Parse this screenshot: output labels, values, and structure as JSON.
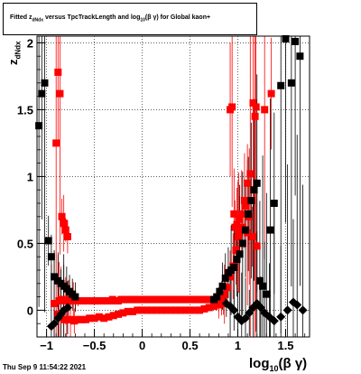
{
  "header": {
    "title_prefix": "Fitted  z",
    "title_sub": "dNdx",
    "title_middle": "  versus TpcTrackLength and log",
    "title_sub2": "10",
    "title_suffix": "(β γ) for Global kaon+"
  },
  "footer": {
    "date": "Thu Sep  9 11:54:22 2021"
  },
  "axes": {
    "x_title_main": "log",
    "x_title_sub": "10",
    "x_title_tail": "(β γ)",
    "y_title_main": "z",
    "y_title_sub": "dNdx"
  },
  "colors": {
    "series_red": "#ff0000",
    "series_black": "#000000"
  },
  "chart_data": {
    "type": "scatter",
    "title": "Fitted  z dNdx versus TpcTrackLength and log10(β γ) for Global kaon+",
    "xlabel": "log10(β γ)",
    "ylabel": "z dNdx",
    "xlim": [
      -1.1,
      1.75
    ],
    "ylim": [
      -0.2,
      2.05
    ],
    "x_ticks": [
      -1,
      -0.5,
      0,
      0.5,
      1,
      1.5
    ],
    "x_tick_labels": [
      "−1",
      "−0.5",
      "0",
      "0.5",
      "1",
      "1.5"
    ],
    "y_ticks": [
      0,
      0.5,
      1,
      1.5,
      2
    ],
    "y_tick_labels": [
      "0",
      "0.5",
      "1",
      "1.5",
      "2"
    ],
    "grid": true,
    "series": [
      {
        "color": "red",
        "marker": "square",
        "x": [
          -0.92,
          -0.87,
          -0.85,
          -0.82,
          -0.8,
          -0.77,
          -0.75,
          -0.72,
          -0.7,
          -0.67,
          -0.64,
          -0.61,
          -0.58,
          -0.55,
          -0.52,
          -0.49,
          -0.46,
          -0.43,
          -0.4,
          -0.37,
          -0.34,
          -0.31,
          -0.28,
          -0.25,
          -0.22,
          -0.19,
          -0.16,
          -0.13,
          -0.1,
          -0.07,
          -0.04,
          -0.01,
          0.02,
          0.05,
          0.08,
          0.11,
          0.14,
          0.17,
          0.2,
          0.23,
          0.26,
          0.29,
          0.32,
          0.35,
          0.38,
          0.41,
          0.44,
          0.47,
          0.5,
          0.53,
          0.56,
          0.59,
          0.62,
          0.65,
          0.68,
          0.71,
          0.74,
          0.77,
          0.8,
          0.83,
          0.86,
          0.89,
          0.92,
          0.95,
          0.98,
          1.01,
          1.04,
          1.07,
          1.1,
          1.13,
          1.16,
          1.19
        ],
        "y": [
          0.05,
          0.07,
          0.08,
          0.08,
          0.07,
          0.07,
          0.08,
          0.07,
          0.07,
          0.07,
          0.07,
          0.07,
          0.07,
          0.07,
          0.07,
          0.07,
          0.07,
          0.07,
          0.07,
          0.07,
          0.07,
          0.08,
          0.07,
          0.07,
          0.08,
          0.08,
          0.08,
          0.08,
          0.08,
          0.08,
          0.08,
          0.08,
          0.08,
          0.08,
          0.08,
          0.08,
          0.08,
          0.08,
          0.08,
          0.08,
          0.08,
          0.08,
          0.08,
          0.08,
          0.08,
          0.08,
          0.08,
          0.08,
          0.08,
          0.08,
          0.08,
          0.08,
          0.08,
          0.08,
          0.08,
          0.08,
          0.08,
          0.08,
          0.08,
          0.09,
          0.12,
          0.17,
          0.25,
          0.33,
          0.45,
          0.58,
          0.72,
          0.82,
          0.95,
          1.02,
          1.55,
          1.52
        ]
      },
      {
        "color": "red",
        "marker": "square",
        "x": [
          -0.88,
          -0.85,
          -0.82,
          -0.79,
          -0.75,
          -0.71,
          -0.67,
          -0.63,
          -0.59,
          -0.55,
          -0.5,
          -0.45,
          -0.4,
          -0.35,
          -0.3,
          -0.25,
          -0.2,
          -0.15,
          -0.1,
          -0.05,
          0.0,
          0.05,
          0.1,
          0.15,
          0.2,
          0.25,
          0.3,
          0.35,
          0.4,
          0.45,
          0.5,
          0.55,
          0.6,
          0.65,
          0.7,
          0.75,
          0.8,
          0.85
        ],
        "y": [
          -0.03,
          -0.05,
          -0.07,
          -0.07,
          -0.07,
          -0.08,
          -0.07,
          -0.07,
          -0.07,
          -0.06,
          -0.06,
          -0.05,
          -0.06,
          -0.05,
          -0.04,
          -0.03,
          -0.02,
          -0.01,
          -0.01,
          0.0,
          0.0,
          0.0,
          0.0,
          0.0,
          0.0,
          0.0,
          0.0,
          0.0,
          0.0,
          0.0,
          0.0,
          0.0,
          0.0,
          0.01,
          0.02,
          0.03,
          0.04,
          0.05
        ]
      },
      {
        "color": "red",
        "marker": "square",
        "x": [
          -0.88,
          -0.86,
          -0.9,
          -0.84,
          -0.82,
          -0.8,
          -0.78,
          0.92,
          0.94,
          0.97,
          1.0,
          1.02,
          1.05,
          1.08,
          1.12,
          1.15,
          1.2,
          1.28,
          1.35,
          0.96,
          0.99,
          1.1,
          1.18
        ],
        "y": [
          1.78,
          1.62,
          1.25,
          0.7,
          0.65,
          0.6,
          0.55,
          1.5,
          1.52,
          0.62,
          0.55,
          0.68,
          0.62,
          0.78,
          0.7,
          0.55,
          0.48,
          1.5,
          1.62,
          0.72,
          0.64,
          0.58,
          1.45
        ]
      },
      {
        "color": "black",
        "marker": "square",
        "x": [
          -1.08,
          -1.05,
          -1.02,
          -0.98,
          -0.95,
          -0.92,
          -0.88,
          -0.85,
          -0.82,
          -0.79,
          -0.76,
          -0.73,
          -0.7,
          0.75,
          0.78,
          0.81,
          0.84,
          0.87,
          0.9,
          0.93,
          0.96,
          0.99,
          1.02,
          1.05,
          1.08,
          1.11,
          1.14,
          1.17,
          1.2,
          1.23,
          1.26,
          1.3,
          1.34,
          1.38,
          1.45,
          1.5,
          1.56,
          1.6,
          1.65
        ],
        "y": [
          1.38,
          1.62,
          1.7,
          0.52,
          0.4,
          0.25,
          0.22,
          0.2,
          0.18,
          0.16,
          0.14,
          0.12,
          0.1,
          0.08,
          0.1,
          0.14,
          0.18,
          0.24,
          0.28,
          0.3,
          0.32,
          0.38,
          0.42,
          0.5,
          0.6,
          0.72,
          0.82,
          0.9,
          0.95,
          0.22,
          0.18,
          0.12,
          0.6,
          0.8,
          1.68,
          2.03,
          1.7,
          2.01,
          1.9
        ]
      },
      {
        "color": "black",
        "marker": "diamond",
        "x": [
          -0.95,
          -0.92,
          -0.88,
          -0.85,
          -0.82,
          -0.78,
          0.88,
          0.92,
          0.96,
          1.0,
          1.04,
          1.08,
          1.12,
          1.16,
          1.2,
          1.24,
          1.28,
          1.33,
          1.38,
          1.45,
          1.52,
          1.58,
          1.62,
          1.68
        ],
        "y": [
          -0.12,
          -0.1,
          -0.06,
          -0.03,
          0.0,
          0.02,
          0.05,
          0.03,
          0.0,
          -0.05,
          -0.08,
          -0.06,
          -0.02,
          0.02,
          0.05,
          0.02,
          -0.02,
          -0.05,
          -0.08,
          -0.05,
          0.0,
          0.06,
          0.04,
          0.0
        ]
      }
    ]
  }
}
